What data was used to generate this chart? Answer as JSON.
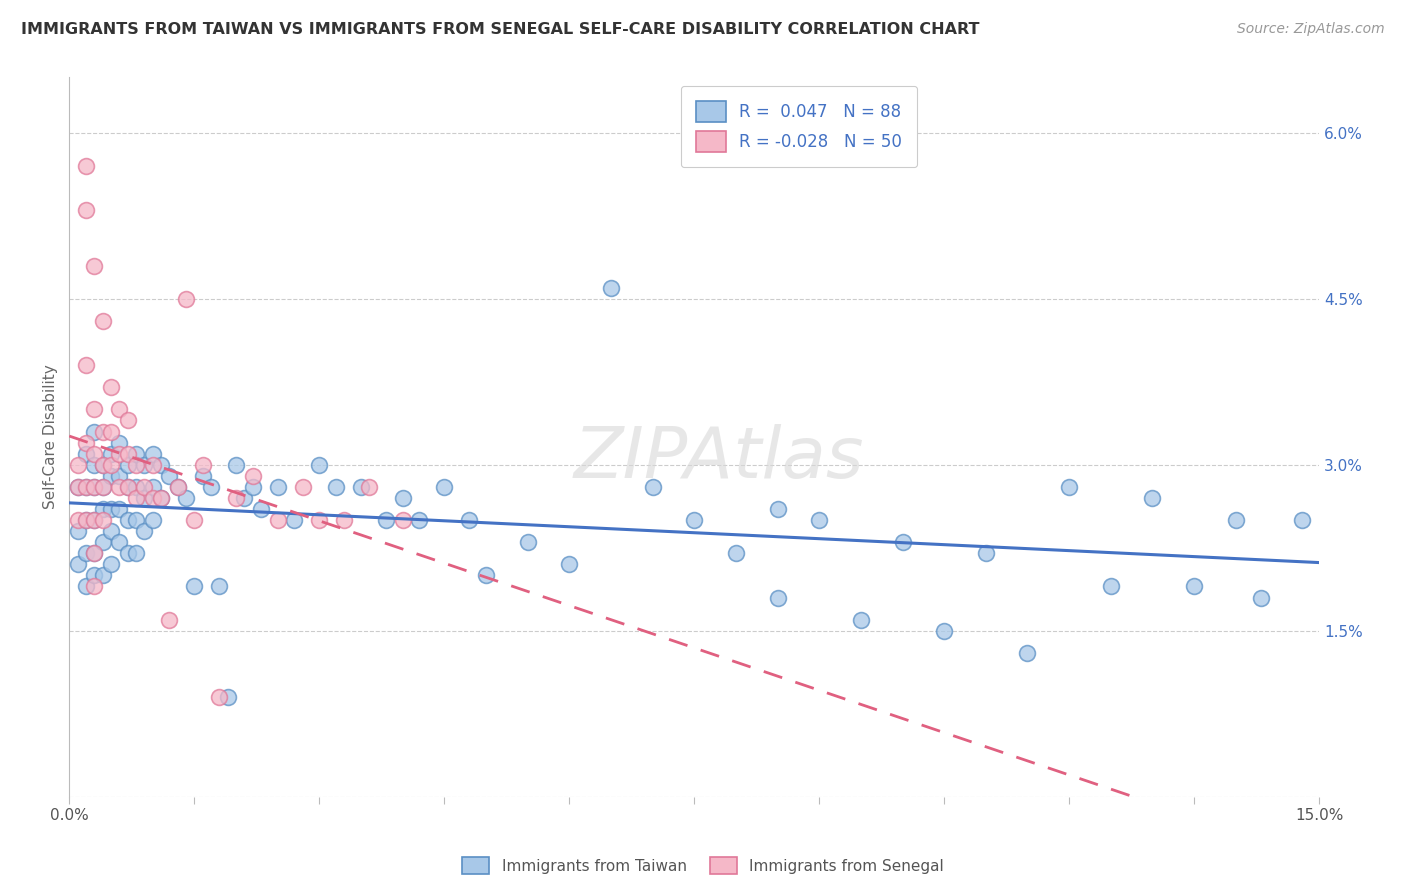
{
  "title": "IMMIGRANTS FROM TAIWAN VS IMMIGRANTS FROM SENEGAL SELF-CARE DISABILITY CORRELATION CHART",
  "source": "Source: ZipAtlas.com",
  "ylabel": "Self-Care Disability",
  "xlim": [
    0.0,
    0.15
  ],
  "ylim": [
    0.0,
    0.065
  ],
  "legend_taiwan_R": "0.047",
  "legend_taiwan_N": "88",
  "legend_senegal_R": "-0.028",
  "legend_senegal_N": "50",
  "taiwan_face_color": "#a8c8e8",
  "senegal_face_color": "#f5b8c8",
  "taiwan_edge_color": "#5a8fc4",
  "senegal_edge_color": "#e07898",
  "taiwan_line_color": "#4472c4",
  "senegal_line_color": "#e06080",
  "legend_text_color": "#4472c4",
  "background_color": "#ffffff",
  "grid_color": "#cccccc",
  "right_tick_color": "#4472c4",
  "ytick_vals": [
    0.015,
    0.03,
    0.045,
    0.06
  ],
  "ytick_labels": [
    "1.5%",
    "3.0%",
    "4.5%",
    "6.0%"
  ],
  "taiwan_x": [
    0.001,
    0.001,
    0.001,
    0.002,
    0.002,
    0.002,
    0.002,
    0.002,
    0.003,
    0.003,
    0.003,
    0.003,
    0.003,
    0.003,
    0.004,
    0.004,
    0.004,
    0.004,
    0.004,
    0.005,
    0.005,
    0.005,
    0.005,
    0.005,
    0.006,
    0.006,
    0.006,
    0.006,
    0.007,
    0.007,
    0.007,
    0.007,
    0.008,
    0.008,
    0.008,
    0.008,
    0.009,
    0.009,
    0.009,
    0.01,
    0.01,
    0.01,
    0.011,
    0.011,
    0.012,
    0.013,
    0.014,
    0.015,
    0.016,
    0.017,
    0.018,
    0.019,
    0.02,
    0.021,
    0.022,
    0.023,
    0.025,
    0.027,
    0.03,
    0.032,
    0.035,
    0.038,
    0.04,
    0.042,
    0.045,
    0.048,
    0.05,
    0.055,
    0.06,
    0.065,
    0.07,
    0.075,
    0.08,
    0.085,
    0.09,
    0.1,
    0.11,
    0.12,
    0.13,
    0.14,
    0.085,
    0.095,
    0.105,
    0.115,
    0.125,
    0.135,
    0.143,
    0.148
  ],
  "taiwan_y": [
    0.028,
    0.024,
    0.021,
    0.031,
    0.028,
    0.025,
    0.022,
    0.019,
    0.033,
    0.03,
    0.028,
    0.025,
    0.022,
    0.02,
    0.03,
    0.028,
    0.026,
    0.023,
    0.02,
    0.031,
    0.029,
    0.026,
    0.024,
    0.021,
    0.032,
    0.029,
    0.026,
    0.023,
    0.03,
    0.028,
    0.025,
    0.022,
    0.031,
    0.028,
    0.025,
    0.022,
    0.03,
    0.027,
    0.024,
    0.031,
    0.028,
    0.025,
    0.03,
    0.027,
    0.029,
    0.028,
    0.027,
    0.019,
    0.029,
    0.028,
    0.019,
    0.009,
    0.03,
    0.027,
    0.028,
    0.026,
    0.028,
    0.025,
    0.03,
    0.028,
    0.028,
    0.025,
    0.027,
    0.025,
    0.028,
    0.025,
    0.02,
    0.023,
    0.021,
    0.046,
    0.028,
    0.025,
    0.022,
    0.026,
    0.025,
    0.023,
    0.022,
    0.028,
    0.027,
    0.025,
    0.018,
    0.016,
    0.015,
    0.013,
    0.019,
    0.019,
    0.018,
    0.025
  ],
  "senegal_x": [
    0.001,
    0.001,
    0.001,
    0.002,
    0.002,
    0.002,
    0.002,
    0.003,
    0.003,
    0.003,
    0.003,
    0.003,
    0.004,
    0.004,
    0.004,
    0.004,
    0.005,
    0.005,
    0.005,
    0.006,
    0.006,
    0.006,
    0.007,
    0.007,
    0.007,
    0.008,
    0.008,
    0.009,
    0.01,
    0.01,
    0.011,
    0.012,
    0.013,
    0.014,
    0.015,
    0.016,
    0.018,
    0.02,
    0.022,
    0.025,
    0.028,
    0.03,
    0.033,
    0.036,
    0.04,
    0.002,
    0.003,
    0.004,
    0.002,
    0.003
  ],
  "senegal_y": [
    0.03,
    0.028,
    0.025,
    0.032,
    0.028,
    0.025,
    0.039,
    0.031,
    0.028,
    0.025,
    0.022,
    0.019,
    0.033,
    0.03,
    0.028,
    0.025,
    0.037,
    0.033,
    0.03,
    0.035,
    0.031,
    0.028,
    0.034,
    0.031,
    0.028,
    0.03,
    0.027,
    0.028,
    0.03,
    0.027,
    0.027,
    0.016,
    0.028,
    0.045,
    0.025,
    0.03,
    0.009,
    0.027,
    0.029,
    0.025,
    0.028,
    0.025,
    0.025,
    0.028,
    0.025,
    0.057,
    0.048,
    0.043,
    0.053,
    0.035
  ]
}
